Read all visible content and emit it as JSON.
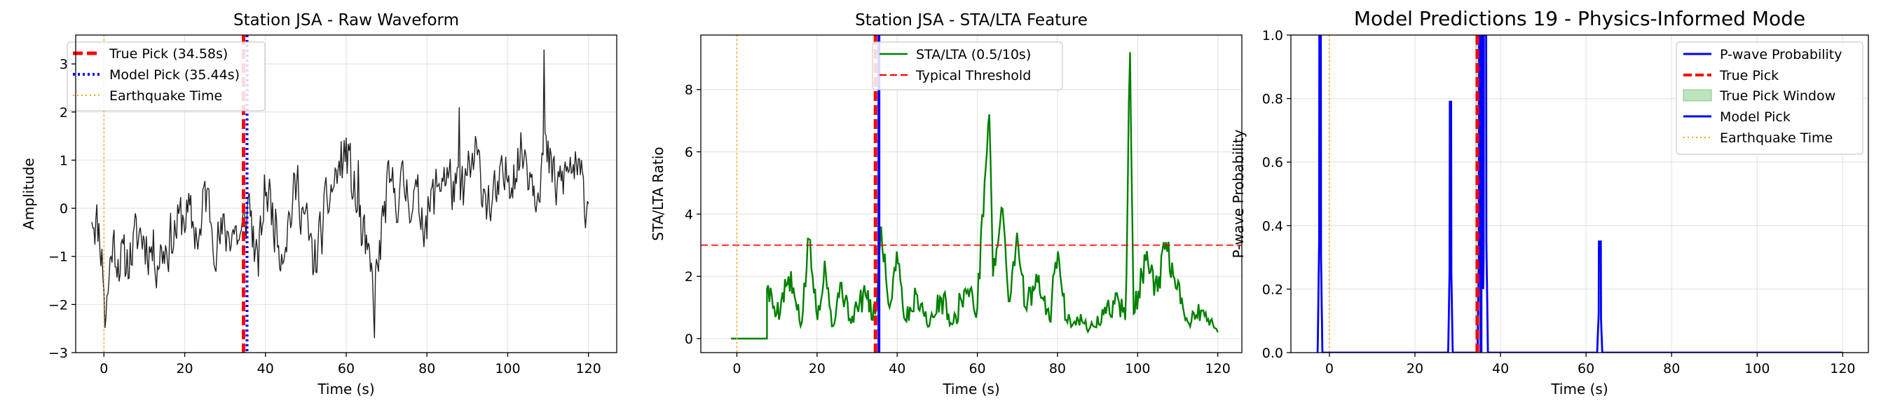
{
  "chart_data": [
    {
      "type": "line",
      "title": "Station JSA - Raw Waveform",
      "xlabel": "Time (s)",
      "ylabel": "Amplitude",
      "xlim": [
        -7,
        127
      ],
      "ylim": [
        -3,
        3.6
      ],
      "xticks": [
        0,
        20,
        40,
        60,
        80,
        100,
        120
      ],
      "yticks": [
        -3,
        -2,
        -1,
        0,
        1,
        2,
        3
      ],
      "grid": true,
      "legend_position": "upper-left",
      "colors": {
        "waveform": "#222222",
        "true_pick": "#ff0000",
        "model_pick": "#0000ff",
        "earthquake": "#ffa500"
      },
      "series": [
        {
          "kind": "waveform",
          "x_start": -3,
          "x_end": 120,
          "anchors": [
            [
              -3,
              0.0
            ],
            [
              -1,
              -0.5
            ],
            [
              0,
              -1.5
            ],
            [
              0.3,
              -2.4
            ],
            [
              2,
              -0.7
            ],
            [
              5,
              -1.2
            ],
            [
              9,
              -0.5
            ],
            [
              13,
              -1.0
            ],
            [
              16,
              -0.7
            ],
            [
              20,
              -0.1
            ],
            [
              24,
              -0.6
            ],
            [
              25,
              0.4
            ],
            [
              28,
              -0.7
            ],
            [
              32,
              -0.4
            ],
            [
              34,
              -0.7
            ],
            [
              36,
              0.2
            ],
            [
              38,
              -1.4
            ],
            [
              40,
              0.5
            ],
            [
              44,
              -0.8
            ],
            [
              48,
              0.5
            ],
            [
              52,
              -1.2
            ],
            [
              56,
              0.3
            ],
            [
              60,
              1.2
            ],
            [
              64,
              -0.6
            ],
            [
              67,
              -1.8
            ],
            [
              70,
              0.3
            ],
            [
              75,
              0.4
            ],
            [
              80,
              -0.2
            ],
            [
              84,
              0.8
            ],
            [
              88,
              0.2
            ],
            [
              92,
              1.0
            ],
            [
              96,
              0.0
            ],
            [
              100,
              0.7
            ],
            [
              104,
              1.2
            ],
            [
              107,
              0.5
            ],
            [
              109,
              1.2
            ],
            [
              112,
              0.4
            ],
            [
              116,
              0.9
            ],
            [
              120,
              0.1
            ]
          ],
          "spikes": [
            [
              63,
              1.0
            ],
            [
              67,
              -2.7
            ],
            [
              109,
              3.3
            ],
            [
              88,
              2.1
            ],
            [
              92,
              1.5
            ]
          ],
          "seed": 11,
          "noise": 0.55
        }
      ],
      "vlines": [
        {
          "kind": "earthquake",
          "x": 0,
          "label": "Earthquake Time"
        },
        {
          "kind": "true_pick",
          "x": 34.58,
          "label": "True Pick (34.58s)"
        },
        {
          "kind": "model_pick",
          "x": 35.44,
          "label": "Model Pick (35.44s)"
        }
      ],
      "legend": [
        "True Pick (34.58s)",
        "Model Pick (35.44s)",
        "Earthquake Time"
      ]
    },
    {
      "type": "line",
      "title": "Station JSA - STA/LTA Feature",
      "xlabel": "Time (s)",
      "ylabel": "STA/LTA Ratio",
      "xlim": [
        -9,
        126
      ],
      "ylim": [
        -0.45,
        9.75
      ],
      "xticks": [
        0,
        20,
        40,
        60,
        80,
        100,
        120
      ],
      "yticks": [
        0,
        2,
        4,
        6,
        8
      ],
      "grid": true,
      "legend_position": "upper-center",
      "colors": {
        "stalta": "#008000",
        "threshold": "#ff0000",
        "true_pick": "#ff0000",
        "model_pick": "#0000ff",
        "earthquake": "#ffa500"
      },
      "series": [
        {
          "kind": "stalta",
          "name": "STA/LTA (0.5/10s)",
          "x_start": -1.5,
          "x_end": 120,
          "flat_until": 7.5,
          "anchors": [
            [
              7.5,
              1.6
            ],
            [
              10,
              0.8
            ],
            [
              13,
              2.0
            ],
            [
              16,
              0.4
            ],
            [
              18,
              3.2
            ],
            [
              20,
              0.6
            ],
            [
              22,
              2.5
            ],
            [
              24,
              0.4
            ],
            [
              26,
              1.8
            ],
            [
              28,
              0.6
            ],
            [
              30,
              1.0
            ],
            [
              32,
              1.4
            ],
            [
              34,
              0.6
            ],
            [
              35,
              1.5
            ],
            [
              36,
              3.6
            ],
            [
              38,
              1.0
            ],
            [
              40,
              2.8
            ],
            [
              42,
              0.6
            ],
            [
              45,
              1.4
            ],
            [
              48,
              0.4
            ],
            [
              51,
              1.3
            ],
            [
              54,
              0.5
            ],
            [
              57,
              1.6
            ],
            [
              60,
              1.0
            ],
            [
              62,
              5.5
            ],
            [
              63,
              7.2
            ],
            [
              64,
              2.0
            ],
            [
              66,
              4.2
            ],
            [
              68,
              1.2
            ],
            [
              70,
              3.4
            ],
            [
              72,
              1.0
            ],
            [
              75,
              1.8
            ],
            [
              78,
              0.6
            ],
            [
              80,
              2.8
            ],
            [
              82,
              0.6
            ],
            [
              85,
              0.7
            ],
            [
              88,
              0.3
            ],
            [
              92,
              0.8
            ],
            [
              95,
              1.3
            ],
            [
              97,
              0.6
            ],
            [
              98,
              9.2
            ],
            [
              99,
              0.8
            ],
            [
              102,
              2.5
            ],
            [
              105,
              1.5
            ],
            [
              107,
              3.1
            ],
            [
              109,
              2.0
            ],
            [
              112,
              0.6
            ],
            [
              116,
              0.9
            ],
            [
              120,
              0.2
            ]
          ],
          "seed": 5,
          "noise": 0.45
        }
      ],
      "hlines": [
        {
          "kind": "threshold",
          "y": 3.0,
          "label": "Typical Threshold"
        }
      ],
      "vlines": [
        {
          "kind": "earthquake",
          "x": 0
        },
        {
          "kind": "true_pick",
          "x": 34.58
        },
        {
          "kind": "model_pick",
          "x": 35.44
        }
      ],
      "legend": [
        "STA/LTA (0.5/10s)",
        "Typical Threshold"
      ]
    },
    {
      "type": "line",
      "title": "Model Predictions 19 - Physics-Informed Mode",
      "xlabel": "Time (s)",
      "ylabel": "P-wave Probability",
      "xlim": [
        -9,
        126
      ],
      "ylim": [
        0,
        1.0
      ],
      "xticks": [
        0,
        20,
        40,
        60,
        80,
        100,
        120
      ],
      "yticks": [
        0.0,
        0.2,
        0.4,
        0.6,
        0.8,
        1.0
      ],
      "grid": true,
      "legend_position": "upper-right",
      "colors": {
        "probability": "#0000ff",
        "true_pick": "#ff0000",
        "window": "#2ca02c",
        "model_pick": "#0000ff",
        "earthquake": "#ffa500"
      },
      "series": [
        {
          "kind": "probability",
          "name": "P-wave Probability",
          "peaks": [
            [
              -2.2,
              1.0,
              0.4
            ],
            [
              28.3,
              0.79,
              0.35
            ],
            [
              35.4,
              1.0,
              0.8
            ],
            [
              36.4,
              1.0,
              0.6
            ],
            [
              63.2,
              0.35,
              0.5
            ]
          ]
        }
      ],
      "window": {
        "x0": 34.1,
        "x1": 35.1
      },
      "vlines": [
        {
          "kind": "earthquake",
          "x": 0
        },
        {
          "kind": "true_pick",
          "x": 34.58
        },
        {
          "kind": "model_pick",
          "x": 35.44
        }
      ],
      "legend": [
        "P-wave Probability",
        "True Pick",
        "True Pick Window",
        "Model Pick",
        "Earthquake Time"
      ]
    }
  ]
}
